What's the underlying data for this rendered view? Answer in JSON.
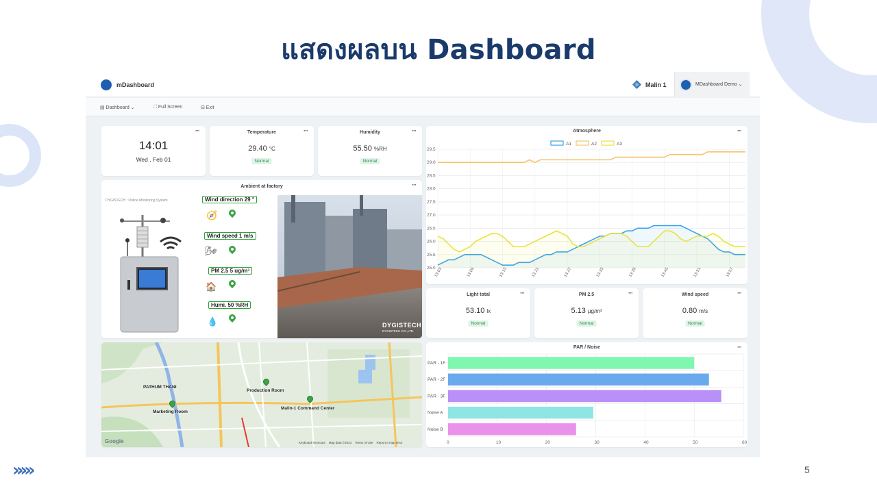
{
  "slide": {
    "title": "แสดงผลบน Dashboard",
    "page_number": "5",
    "chevrons": "›››››"
  },
  "app": {
    "brand": "mDashboard",
    "org": "Malin 1",
    "user": "MDashboard Demo ⌄",
    "toolbar": {
      "dashboard": "▤ Dashboard ⌄",
      "fullscreen": "⛶ Full Screen",
      "exit": "⊟ Exit"
    }
  },
  "menu_glyph": "···",
  "widgets": {
    "clock": {
      "time": "14:01",
      "date": "Wed , Feb 01"
    },
    "temperature": {
      "title": "Temperature",
      "value": "29.40",
      "unit": "°C",
      "status": "Normal"
    },
    "humidity": {
      "title": "Humidity",
      "value": "55.50",
      "unit": "%RH",
      "status": "Normal"
    },
    "ambient": {
      "title": "Ambient at factory",
      "caption": "DYGISTECH : Online Monitoring System",
      "wind_direction": "Wind direction 29 °",
      "wind_speed": "Wind speed 1  m/s",
      "pm25": "PM 2.5 5 ug/m³",
      "humi": "Humi. 50 %RH",
      "photo_watermark": "DYGISTECH",
      "photo_watermark_sub": "DYGISTECH CO.,LTD."
    },
    "light": {
      "title": "Light total",
      "value": "53.10",
      "unit": "lx",
      "status": "Normal"
    },
    "pm25": {
      "title": "PM 2.5",
      "value": "5.13",
      "unit": "µg/m³",
      "status": "Normal"
    },
    "wind": {
      "title": "Wind speed",
      "value": "0.80",
      "unit": "m/s",
      "status": "Normal"
    },
    "map": {
      "labels": {
        "pathum": "PATHUM THANI",
        "production": "Production Room",
        "marketing": "Marketing Room",
        "command": "Malin-1 Command Center"
      },
      "google": "Google",
      "attribution": "Keyboard shortcuts    Map data ©2023    Terms of Use    Report a map error"
    }
  },
  "chart_data": [
    {
      "type": "line",
      "title": "Atmosphere",
      "x": [
        "13:03",
        "13:04",
        "13:05",
        "13:06",
        "13:07",
        "13:08",
        "13:09",
        "13:10",
        "13:11",
        "13:12",
        "13:13",
        "13:14",
        "13:15",
        "13:16",
        "13:17",
        "13:18",
        "13:19",
        "13:20",
        "13:21",
        "13:22",
        "13:23",
        "13:24",
        "13:25",
        "13:26",
        "13:27",
        "13:28",
        "13:29",
        "13:30",
        "13:31",
        "13:32",
        "13:33",
        "13:34",
        "13:35",
        "13:36",
        "13:37",
        "13:38",
        "13:39",
        "13:40",
        "13:41",
        "13:42",
        "13:43",
        "13:44",
        "13:45",
        "13:46",
        "13:47",
        "13:48",
        "13:49",
        "13:50",
        "13:51",
        "13:52",
        "13:53",
        "13:54",
        "13:55",
        "13:56",
        "13:57",
        "13:58",
        "13:59",
        "14:00"
      ],
      "x_tick_labels": [
        "13:03",
        "13:09",
        "13:15",
        "13:21",
        "13:27",
        "13:33",
        "13:39",
        "13:45",
        "13:51",
        "13:57"
      ],
      "ylim": [
        25.0,
        29.5
      ],
      "y_ticks": [
        25.0,
        25.5,
        26.0,
        26.5,
        27.0,
        27.5,
        28.0,
        28.5,
        29.0,
        29.5
      ],
      "legend_position": "top-center",
      "grid": true,
      "series": [
        {
          "name": "A1",
          "color": "#36a2eb",
          "values": [
            25.1,
            25.2,
            25.3,
            25.3,
            25.4,
            25.5,
            25.5,
            25.5,
            25.5,
            25.4,
            25.3,
            25.2,
            25.1,
            25.1,
            25.1,
            25.2,
            25.2,
            25.2,
            25.3,
            25.4,
            25.5,
            25.5,
            25.6,
            25.6,
            25.6,
            25.7,
            25.8,
            25.9,
            26.0,
            26.1,
            26.2,
            26.2,
            26.3,
            26.3,
            26.3,
            26.4,
            26.4,
            26.5,
            26.5,
            26.5,
            26.6,
            26.6,
            26.6,
            26.6,
            26.6,
            26.6,
            26.5,
            26.4,
            26.3,
            26.2,
            26.1,
            25.9,
            25.7,
            25.6,
            25.6,
            25.5,
            25.5,
            25.5
          ]
        },
        {
          "name": "A2",
          "color": "#f6c36b",
          "values": [
            29.0,
            29.0,
            29.0,
            29.0,
            29.0,
            29.0,
            29.0,
            29.0,
            29.0,
            29.0,
            29.0,
            29.0,
            29.0,
            29.0,
            29.0,
            29.0,
            29.0,
            29.1,
            29.0,
            29.1,
            29.1,
            29.1,
            29.1,
            29.1,
            29.1,
            29.1,
            29.1,
            29.1,
            29.1,
            29.1,
            29.1,
            29.1,
            29.1,
            29.2,
            29.2,
            29.2,
            29.2,
            29.2,
            29.2,
            29.2,
            29.2,
            29.2,
            29.2,
            29.3,
            29.3,
            29.3,
            29.3,
            29.3,
            29.3,
            29.3,
            29.4,
            29.4,
            29.4,
            29.4,
            29.4,
            29.4,
            29.4,
            29.4
          ]
        },
        {
          "name": "A3",
          "color": "#e9e33b",
          "values": [
            26.2,
            26.1,
            25.9,
            25.7,
            25.6,
            25.7,
            25.8,
            26.0,
            26.1,
            26.2,
            26.3,
            26.3,
            26.2,
            26.0,
            25.8,
            25.8,
            25.8,
            25.9,
            26.0,
            26.1,
            26.2,
            26.3,
            26.4,
            26.3,
            26.2,
            25.9,
            25.8,
            25.8,
            25.9,
            26.0,
            26.1,
            26.2,
            26.3,
            26.3,
            26.3,
            26.2,
            26.0,
            25.8,
            25.8,
            25.8,
            26.0,
            26.2,
            26.4,
            26.4,
            26.3,
            26.1,
            26.0,
            26.1,
            26.2,
            26.2,
            26.2,
            26.3,
            26.2,
            26.0,
            25.9,
            25.8,
            25.8,
            25.8
          ]
        }
      ]
    },
    {
      "type": "bar",
      "orientation": "horizontal",
      "title": "PAR / Noise",
      "categories": [
        "PAR - 1F",
        "PAR - 2F",
        "PAR - 3F",
        "Noise A",
        "Noise B"
      ],
      "values": [
        50,
        53,
        55.5,
        29.5,
        26
      ],
      "colors": [
        "#7ff7b0",
        "#6aa9ec",
        "#b98ff8",
        "#8fe4e4",
        "#ea91ea"
      ],
      "xlim": [
        0,
        60
      ],
      "x_ticks": [
        0,
        10,
        20,
        30,
        40,
        50,
        60
      ],
      "grid": true
    }
  ]
}
